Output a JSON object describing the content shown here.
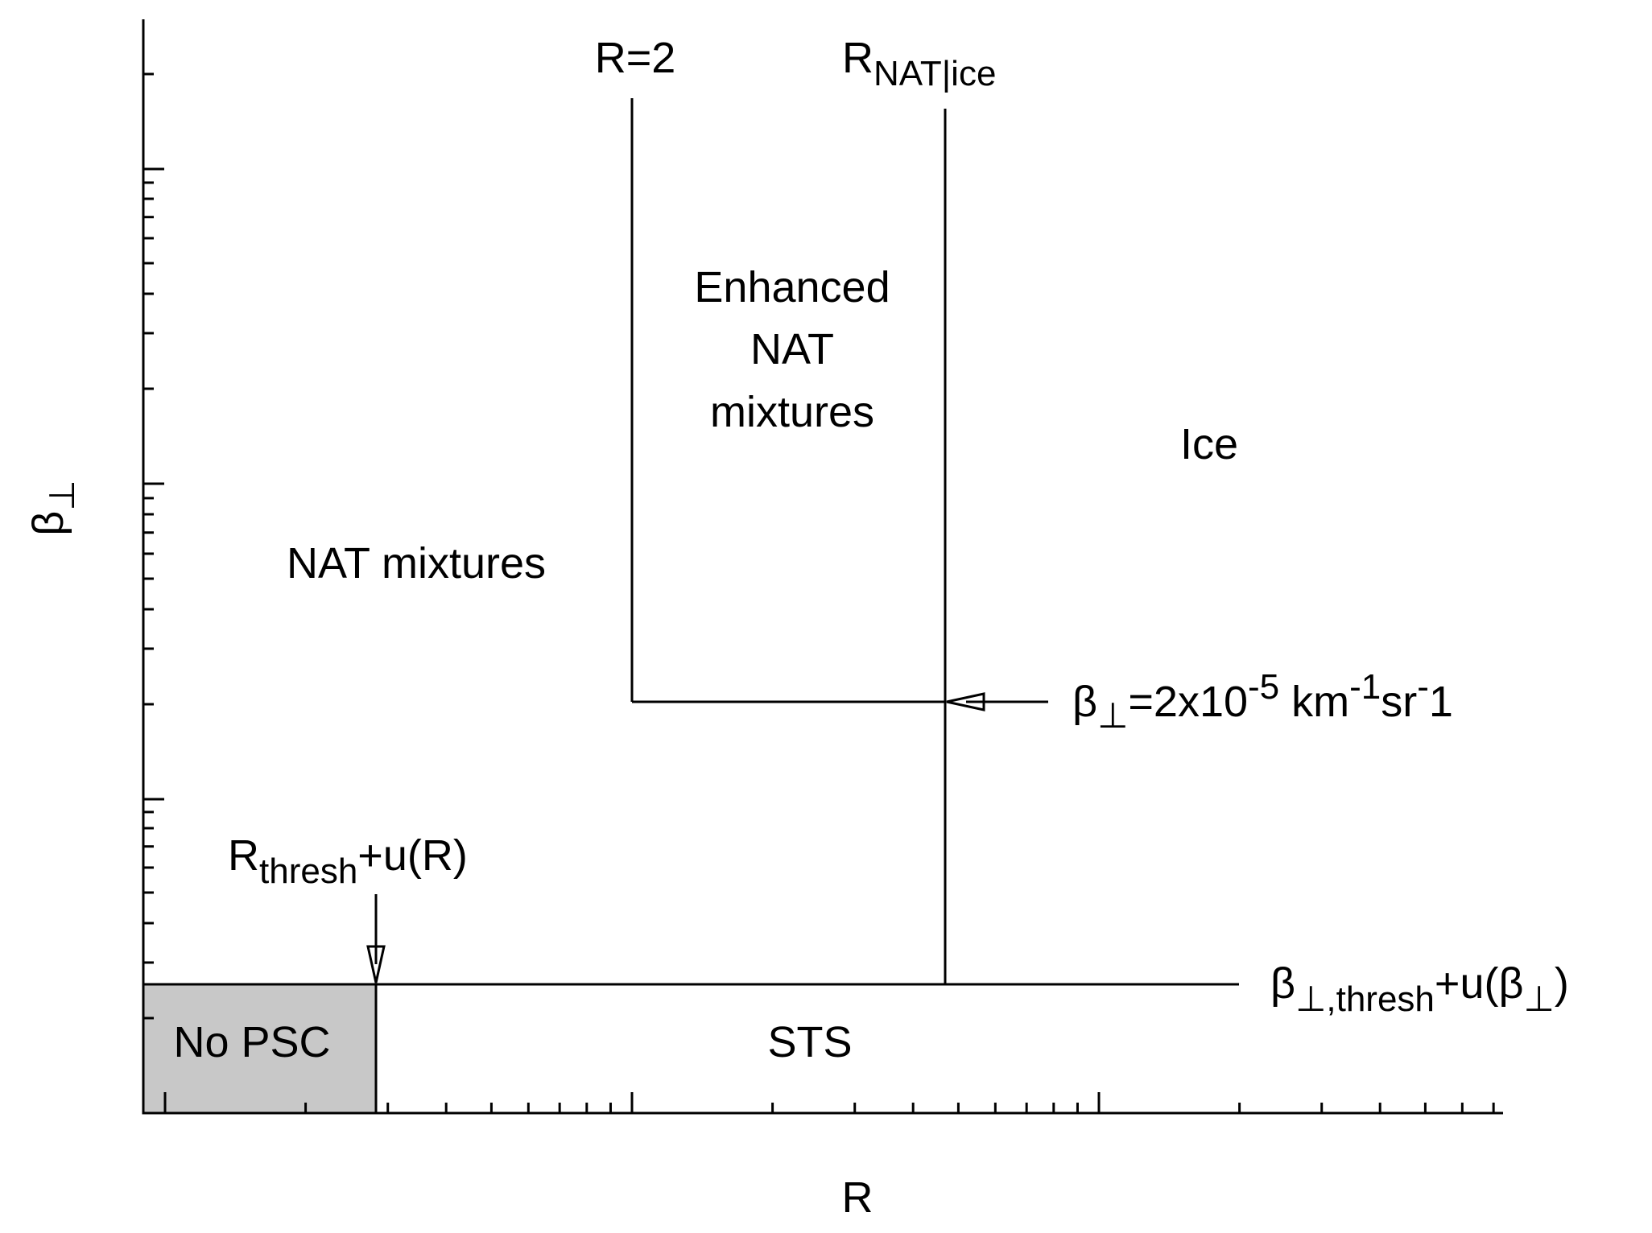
{
  "labels": {
    "r2": "R=2",
    "r_nat_ice": {
      "main": "R",
      "sub": "NAT|ice"
    },
    "enhanced": [
      "Enhanced",
      "NAT",
      "mixtures"
    ],
    "ice": "Ice",
    "nat_mixtures": "NAT mixtures",
    "beta_level": {
      "beta": "β",
      "sub": "⊥",
      "eq": "=2x10",
      "exp": "-5",
      "km": " km",
      "km_exp": "-1",
      "sr": "sr",
      "sr_exp": "-",
      "one": "1"
    },
    "r_thresh": {
      "main": "R",
      "sub": "thresh",
      "rest": "+u(R)"
    },
    "beta_thresh": {
      "beta": "β",
      "sub": "⊥,thresh",
      "rest": "+u(β",
      "sub2": "⊥",
      "close": ")"
    },
    "no_psc": "No PSC",
    "sts": "STS"
  },
  "axes": {
    "x_label": "R",
    "y_label": {
      "main": "β",
      "sub": "⊥"
    }
  }
}
